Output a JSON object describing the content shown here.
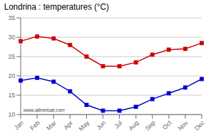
{
  "chart_data": {
    "type": "line",
    "title": "Londrina : temperatures (°C)",
    "categories": [
      "Jan",
      "Feb",
      "Mar",
      "Apr",
      "May",
      "Jun",
      "Jul",
      "Aug",
      "Sep",
      "Oct",
      "Nov",
      "Dec"
    ],
    "series": [
      {
        "color": "#cc0000",
        "marker": "square",
        "values": [
          29,
          30.2,
          29.7,
          28,
          25,
          22.5,
          22.5,
          23.5,
          25.5,
          26.8,
          27,
          28.5
        ]
      },
      {
        "color": "#0000cc",
        "marker": "square",
        "values": [
          18.8,
          19.5,
          18.5,
          16,
          12.5,
          11,
          11,
          12,
          14,
          15.5,
          17,
          19.2
        ]
      }
    ],
    "ylim": [
      10,
      35
    ],
    "yticks": [
      10,
      15,
      20,
      25,
      30,
      35
    ],
    "grid": true,
    "annotations": [
      "www.allmetsat.com"
    ]
  }
}
